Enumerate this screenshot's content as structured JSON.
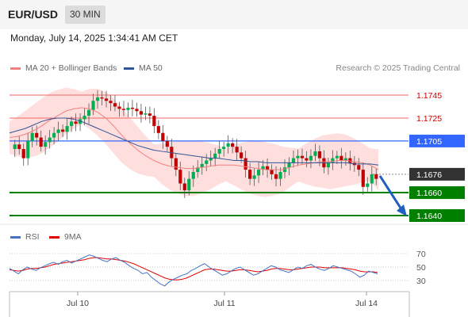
{
  "header": {
    "symbol": "EUR/USD",
    "timeframe": "30 MIN"
  },
  "datetime": "Monday, July 14, 2025 1:34:41 AM CET",
  "legend": [
    {
      "label": "MA 20 + Bollinger Bands",
      "color": "#f08080"
    },
    {
      "label": "MA 50",
      "color": "#2f5597"
    }
  ],
  "credit": "Research © 2025 Trading Central",
  "colors": {
    "up": "#00b050",
    "down": "#c00000",
    "support": "#008000",
    "resistance": "#f06666",
    "pivot": "#3366ff",
    "current": "#333333",
    "bands": "#ffd6d6",
    "arrow": "#1f5fbf"
  },
  "chart_data": [
    {
      "type": "candlestick",
      "ylim": [
        1.163,
        1.1765
      ],
      "x_labels": [
        "Jul 10",
        "Jul 11",
        "Jul 14"
      ],
      "levels": [
        {
          "kind": "resistance",
          "value": 1.1745,
          "label": "1.1745"
        },
        {
          "kind": "resistance",
          "value": 1.1725,
          "label": "1.1725"
        },
        {
          "kind": "pivot",
          "value": 1.1705,
          "label": "1.1705"
        },
        {
          "kind": "current",
          "value": 1.1676,
          "label": "1.1676"
        },
        {
          "kind": "support",
          "value": 1.166,
          "label": "1.1660"
        },
        {
          "kind": "support",
          "value": 1.164,
          "label": "1.1640"
        }
      ],
      "forecast_arrow": {
        "from": 1.1676,
        "to": 1.164
      },
      "close_series": [
        1.1702,
        1.1698,
        1.169,
        1.1705,
        1.1712,
        1.1708,
        1.17,
        1.1704,
        1.1708,
        1.1712,
        1.1715,
        1.1713,
        1.1718,
        1.1722,
        1.172,
        1.1724,
        1.1727,
        1.1732,
        1.174,
        1.1743,
        1.1742,
        1.174,
        1.1738,
        1.1735,
        1.1733,
        1.1732,
        1.1734,
        1.1733,
        1.1731,
        1.1728,
        1.1729,
        1.1727,
        1.1718,
        1.1712,
        1.1705,
        1.17,
        1.169,
        1.168,
        1.1668,
        1.1662,
        1.1672,
        1.1678,
        1.1682,
        1.1685,
        1.1688,
        1.169,
        1.1694,
        1.1698,
        1.17,
        1.1703,
        1.17,
        1.1695,
        1.169,
        1.168,
        1.1672,
        1.1675,
        1.168,
        1.1683,
        1.168,
        1.1676,
        1.1672,
        1.1678,
        1.1682,
        1.1686,
        1.169,
        1.1692,
        1.169,
        1.1688,
        1.1692,
        1.1696,
        1.169,
        1.1682,
        1.1686,
        1.169,
        1.1692,
        1.1688,
        1.169,
        1.1686,
        1.1684,
        1.168,
        1.1665,
        1.1668,
        1.1676,
        1.1672
      ],
      "series": [
        {
          "name": "MA 20 + Bollinger Bands",
          "ma": [
            1.1708,
            1.1709,
            1.1711,
            1.1714,
            1.1718,
            1.1723,
            1.1727,
            1.1731,
            1.1733,
            1.1734,
            1.1733,
            1.173,
            1.1725,
            1.1718,
            1.171,
            1.1703,
            1.1697,
            1.1692,
            1.1688,
            1.1685,
            1.1683,
            1.1682,
            1.1681,
            1.1681,
            1.1682,
            1.1683,
            1.1684,
            1.1684,
            1.1684,
            1.1683,
            1.1682,
            1.1681,
            1.168,
            1.168,
            1.168,
            1.1682,
            1.1684,
            1.1685,
            1.1686,
            1.1687,
            1.1687,
            1.1688,
            1.1688,
            1.1687,
            1.1686,
            1.1684,
            1.168
          ]
        },
        {
          "name": "MA 50",
          "ma": [
            1.1712,
            1.1714,
            1.1716,
            1.1719,
            1.1722,
            1.1724,
            1.1725,
            1.1725,
            1.1724,
            1.1722,
            1.1719,
            1.1716,
            1.1713,
            1.171,
            1.1707,
            1.1704,
            1.1701,
            1.1699,
            1.1697,
            1.1696,
            1.1695,
            1.1694,
            1.1693,
            1.1692,
            1.1691,
            1.169,
            1.169,
            1.1689,
            1.1688,
            1.1688,
            1.1687,
            1.1687,
            1.1686,
            1.1686,
            1.1686,
            1.1686,
            1.1686,
            1.1686,
            1.1686,
            1.1686,
            1.1686,
            1.1686,
            1.1686,
            1.1685,
            1.1685,
            1.1685,
            1.1684
          ]
        }
      ]
    },
    {
      "type": "line",
      "legend": [
        {
          "label": "RSI",
          "color": "#4472c4"
        },
        {
          "label": "9MA",
          "color": "#e00000"
        }
      ],
      "ylim": [
        15,
        80
      ],
      "yticks": [
        70,
        50,
        30
      ],
      "series": [
        {
          "name": "RSI",
          "values": [
            48,
            44,
            40,
            46,
            50,
            47,
            45,
            49,
            52,
            55,
            57,
            54,
            58,
            60,
            56,
            59,
            62,
            65,
            68,
            66,
            63,
            60,
            58,
            62,
            64,
            60,
            57,
            52,
            48,
            45,
            40,
            42,
            35,
            30,
            25,
            22,
            28,
            32,
            35,
            38,
            40,
            45,
            48,
            52,
            55,
            50,
            46,
            42,
            38,
            40,
            44,
            48,
            50,
            46,
            42,
            38,
            40,
            44,
            48,
            52,
            50,
            46,
            44,
            42,
            46,
            50,
            48,
            52,
            54,
            50,
            47,
            45,
            48,
            52,
            50,
            48,
            46,
            44,
            40,
            35,
            38,
            44,
            42,
            40
          ]
        },
        {
          "name": "9MA",
          "values": [
            46,
            45,
            44,
            45,
            47,
            48,
            48,
            49,
            50,
            52,
            54,
            55,
            56,
            57,
            58,
            59,
            60,
            61,
            63,
            64,
            64,
            63,
            62,
            62,
            61,
            60,
            59,
            57,
            55,
            52,
            49,
            46,
            43,
            40,
            37,
            34,
            32,
            31,
            31,
            32,
            34,
            37,
            40,
            43,
            46,
            47,
            47,
            46,
            45,
            44,
            44,
            45,
            46,
            46,
            45,
            44,
            43,
            44,
            45,
            47,
            48,
            48,
            47,
            46,
            46,
            47,
            48,
            49,
            50,
            50,
            50,
            49,
            49,
            49,
            49,
            49,
            48,
            47,
            46,
            44,
            43,
            43,
            43,
            42
          ]
        }
      ]
    }
  ]
}
